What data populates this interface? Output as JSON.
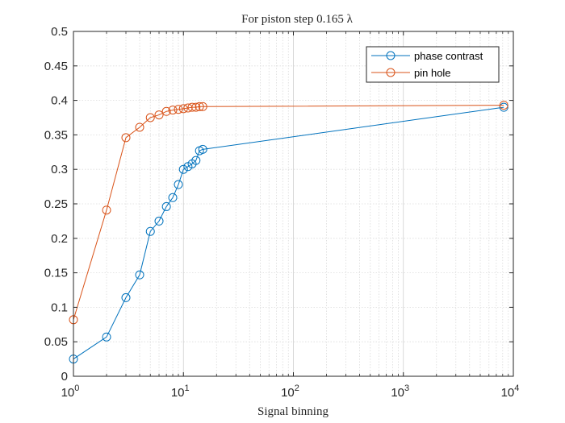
{
  "chart_data": {
    "type": "line",
    "title": "For piston step 0.165 λ",
    "xlabel": "Signal binning",
    "ylabel": "",
    "xscale": "log",
    "xlim": [
      1,
      10000
    ],
    "ylim": [
      0,
      0.5
    ],
    "grid": true,
    "minor_grid_x": true,
    "legend_position": "top-right",
    "x_tick_labels": [
      {
        "base": "10",
        "exp": "0"
      },
      {
        "base": "10",
        "exp": "1"
      },
      {
        "base": "10",
        "exp": "2"
      },
      {
        "base": "10",
        "exp": "3"
      },
      {
        "base": "10",
        "exp": "4"
      }
    ],
    "y_ticks": [
      0,
      0.05,
      0.1,
      0.15,
      0.2,
      0.25,
      0.3,
      0.35,
      0.4,
      0.45,
      0.5
    ],
    "y_tick_labels": [
      "0",
      "0.05",
      "0.1",
      "0.15",
      "0.2",
      "0.25",
      "0.3",
      "0.35",
      "0.4",
      "0.45",
      "0.5"
    ],
    "series": [
      {
        "name": "phase contrast",
        "color": "#0072BD",
        "marker": "circle",
        "x": [
          1,
          2,
          3,
          4,
          5,
          6,
          7,
          8,
          9,
          10,
          11,
          12,
          13,
          14,
          15,
          8192
        ],
        "y": [
          0.025,
          0.057,
          0.114,
          0.147,
          0.21,
          0.225,
          0.246,
          0.259,
          0.278,
          0.3,
          0.304,
          0.308,
          0.313,
          0.327,
          0.329,
          0.39
        ]
      },
      {
        "name": "pin hole",
        "color": "#D95319",
        "marker": "circle",
        "x": [
          1,
          2,
          3,
          4,
          5,
          6,
          7,
          8,
          9,
          10,
          11,
          12,
          13,
          14,
          15,
          8192
        ],
        "y": [
          0.082,
          0.241,
          0.346,
          0.361,
          0.375,
          0.379,
          0.384,
          0.386,
          0.387,
          0.388,
          0.389,
          0.39,
          0.39,
          0.391,
          0.391,
          0.393
        ]
      }
    ]
  }
}
